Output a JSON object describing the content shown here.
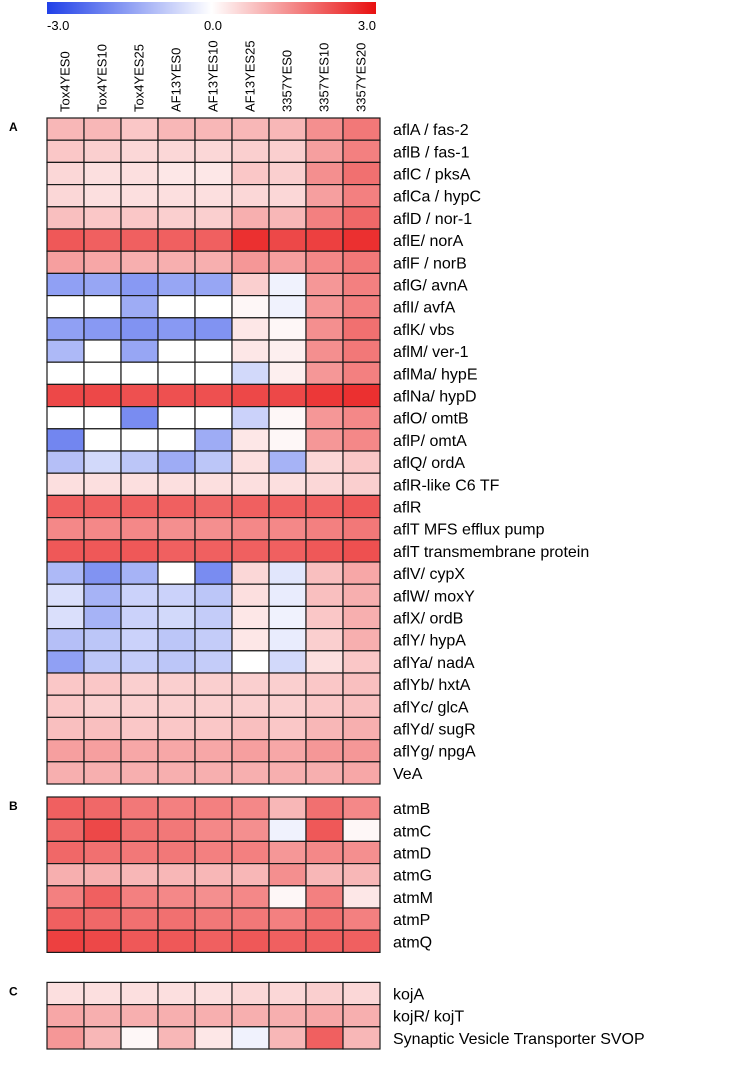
{
  "chart_data": {
    "type": "heatmap",
    "color_scale": {
      "min": -3.0,
      "mid": 0.0,
      "max": 3.0,
      "min_label": "-3.0",
      "mid_label": "0.0",
      "max_label": "3.0",
      "min_color": "#2040e8",
      "mid_color": "#ffffff",
      "max_color": "#e81010"
    },
    "columns": [
      "Tox4YES0",
      "Tox4YES10",
      "Tox4YES25",
      "AF13YES0",
      "AF13YES10",
      "AF13YES25",
      "3357YES0",
      "3357YES10",
      "3357YES20"
    ],
    "panels": [
      {
        "label": "A",
        "rows": [
          {
            "gene": "aflA / fas-2",
            "values": [
              0.9,
              0.9,
              0.7,
              0.9,
              0.9,
              0.9,
              0.9,
              1.4,
              1.7
            ]
          },
          {
            "gene": "aflB / fas-1",
            "values": [
              0.7,
              0.6,
              0.5,
              0.5,
              0.5,
              0.6,
              0.6,
              1.2,
              1.6
            ]
          },
          {
            "gene": "aflC / pksA",
            "values": [
              0.5,
              0.4,
              0.4,
              0.3,
              0.3,
              0.7,
              0.6,
              1.4,
              1.8
            ]
          },
          {
            "gene": "aflCa / hypC",
            "values": [
              0.5,
              0.4,
              0.4,
              0.4,
              0.4,
              0.5,
              0.5,
              1.2,
              1.6
            ]
          },
          {
            "gene": "aflD / nor-1",
            "values": [
              0.8,
              0.7,
              0.7,
              0.6,
              0.6,
              1.0,
              0.9,
              1.6,
              1.9
            ]
          },
          {
            "gene": "aflE/ norA",
            "values": [
              2.1,
              2.0,
              2.0,
              2.0,
              2.0,
              2.6,
              2.3,
              2.4,
              2.6
            ]
          },
          {
            "gene": "aflF / norB",
            "values": [
              1.2,
              1.1,
              1.0,
              1.0,
              1.0,
              1.3,
              1.2,
              1.5,
              1.7
            ]
          },
          {
            "gene": "aflG/ avnA",
            "values": [
              -1.5,
              -1.4,
              -1.6,
              -1.4,
              -1.4,
              0.6,
              -0.2,
              1.3,
              1.6
            ]
          },
          {
            "gene": "aflI/ avfA",
            "values": [
              0.0,
              0.0,
              -1.3,
              0.0,
              0.0,
              0.1,
              -0.2,
              1.3,
              1.6
            ]
          },
          {
            "gene": "aflK/ vbs",
            "values": [
              -1.5,
              -1.6,
              -1.7,
              -1.6,
              -1.7,
              0.3,
              0.1,
              1.4,
              1.8
            ]
          },
          {
            "gene": "aflM/ ver-1",
            "values": [
              -1.1,
              0.0,
              -1.4,
              0.0,
              0.0,
              0.3,
              0.2,
              1.4,
              1.7
            ]
          },
          {
            "gene": "aflMa/ hypE",
            "values": [
              0.0,
              0.0,
              0.0,
              0.0,
              0.0,
              -0.6,
              0.2,
              1.3,
              1.6
            ]
          },
          {
            "gene": "aflNa/ hypD",
            "values": [
              2.3,
              2.3,
              2.2,
              2.2,
              2.2,
              2.3,
              2.3,
              2.5,
              2.6
            ]
          },
          {
            "gene": "aflO/ omtB",
            "values": [
              0.0,
              0.0,
              -1.8,
              0.0,
              0.0,
              -0.7,
              0.1,
              1.3,
              1.5
            ]
          },
          {
            "gene": "aflP/ omtA",
            "values": [
              -1.9,
              0.0,
              0.0,
              0.0,
              -1.3,
              0.3,
              0.1,
              1.3,
              1.5
            ]
          },
          {
            "gene": "aflQ/ ordA",
            "values": [
              -1.0,
              -0.6,
              -0.9,
              -1.3,
              -0.9,
              0.4,
              -1.2,
              0.5,
              0.7
            ]
          },
          {
            "gene": "aflR-like C6 TF",
            "values": [
              0.4,
              0.4,
              0.4,
              0.4,
              0.4,
              0.4,
              0.4,
              0.5,
              0.6
            ]
          },
          {
            "gene": "aflR",
            "values": [
              2.0,
              2.0,
              2.0,
              2.0,
              1.9,
              2.0,
              2.0,
              2.0,
              2.1
            ]
          },
          {
            "gene": "aflT MFS efflux pump",
            "values": [
              1.5,
              1.5,
              1.5,
              1.4,
              1.4,
              1.5,
              1.5,
              1.6,
              1.7
            ]
          },
          {
            "gene": "aflT transmembrane protein",
            "values": [
              2.1,
              2.1,
              2.1,
              2.0,
              2.0,
              2.0,
              2.0,
              2.1,
              2.2
            ]
          },
          {
            "gene": "aflV/ cypX",
            "values": [
              -1.1,
              -1.7,
              -1.2,
              0.0,
              -1.8,
              0.5,
              -0.4,
              0.8,
              1.1
            ]
          },
          {
            "gene": "aflW/ moxY",
            "values": [
              -0.5,
              -1.2,
              -0.7,
              -0.7,
              -0.9,
              0.4,
              -0.3,
              0.8,
              1.0
            ]
          },
          {
            "gene": "aflX/ ordB",
            "values": [
              -0.5,
              -1.2,
              -0.7,
              -0.6,
              -0.8,
              0.3,
              -0.2,
              0.7,
              1.0
            ]
          },
          {
            "gene": "aflY/ hypA",
            "values": [
              -1.0,
              -0.9,
              -0.7,
              -0.9,
              -0.8,
              0.3,
              -0.3,
              0.6,
              1.0
            ]
          },
          {
            "gene": "aflYa/ nadA",
            "values": [
              -1.5,
              -0.9,
              -0.8,
              -0.9,
              -0.8,
              0.0,
              -0.6,
              0.4,
              0.7
            ]
          },
          {
            "gene": "aflYb/ hxtA",
            "values": [
              0.7,
              0.7,
              0.6,
              0.6,
              0.6,
              0.6,
              0.6,
              0.7,
              0.8
            ]
          },
          {
            "gene": "aflYc/ glcA",
            "values": [
              0.7,
              0.6,
              0.6,
              0.6,
              0.6,
              0.6,
              0.6,
              0.7,
              0.8
            ]
          },
          {
            "gene": "aflYd/ sugR",
            "values": [
              0.8,
              0.8,
              0.7,
              0.7,
              0.7,
              0.8,
              0.7,
              0.9,
              1.0
            ]
          },
          {
            "gene": "aflYg/ npgA",
            "values": [
              1.2,
              1.2,
              1.1,
              1.1,
              1.1,
              1.2,
              1.1,
              1.3,
              1.3
            ]
          },
          {
            "gene": "VeA",
            "values": [
              1.0,
              1.0,
              1.0,
              1.0,
              1.0,
              1.0,
              1.0,
              1.0,
              1.1
            ]
          }
        ]
      },
      {
        "label": "B",
        "rows": [
          {
            "gene": "atmB",
            "values": [
              2.0,
              1.9,
              1.7,
              1.6,
              1.6,
              1.5,
              0.9,
              1.8,
              1.5
            ]
          },
          {
            "gene": "atmC",
            "values": [
              1.9,
              2.3,
              1.8,
              1.7,
              1.5,
              1.4,
              -0.2,
              2.1,
              0.1
            ]
          },
          {
            "gene": "atmD",
            "values": [
              1.9,
              1.8,
              1.7,
              1.7,
              1.6,
              1.6,
              1.3,
              1.5,
              1.4
            ]
          },
          {
            "gene": "atmG",
            "values": [
              1.0,
              1.0,
              0.9,
              0.9,
              0.9,
              0.9,
              1.4,
              0.9,
              0.9
            ]
          },
          {
            "gene": "atmM",
            "values": [
              1.6,
              2.0,
              1.6,
              1.5,
              1.4,
              1.5,
              0.1,
              1.6,
              0.3
            ]
          },
          {
            "gene": "atmP",
            "values": [
              2.0,
              1.9,
              1.8,
              1.8,
              1.7,
              1.7,
              1.6,
              1.8,
              1.6
            ]
          },
          {
            "gene": "atmQ",
            "values": [
              2.4,
              2.3,
              2.1,
              2.1,
              2.0,
              2.1,
              2.0,
              2.0,
              2.0
            ]
          }
        ]
      },
      {
        "label": "C",
        "rows": [
          {
            "gene": "kojA",
            "values": [
              0.4,
              0.4,
              0.4,
              0.4,
              0.4,
              0.5,
              0.5,
              0.6,
              0.5
            ]
          },
          {
            "gene": "kojR/ kojT",
            "values": [
              1.1,
              1.0,
              1.0,
              1.0,
              1.0,
              1.0,
              1.0,
              1.1,
              1.0
            ]
          },
          {
            "gene": "Synaptic Vesicle Transporter SVOP",
            "values": [
              1.3,
              0.9,
              0.1,
              0.9,
              0.3,
              -0.2,
              0.9,
              2.0,
              0.9
            ]
          }
        ]
      }
    ]
  }
}
